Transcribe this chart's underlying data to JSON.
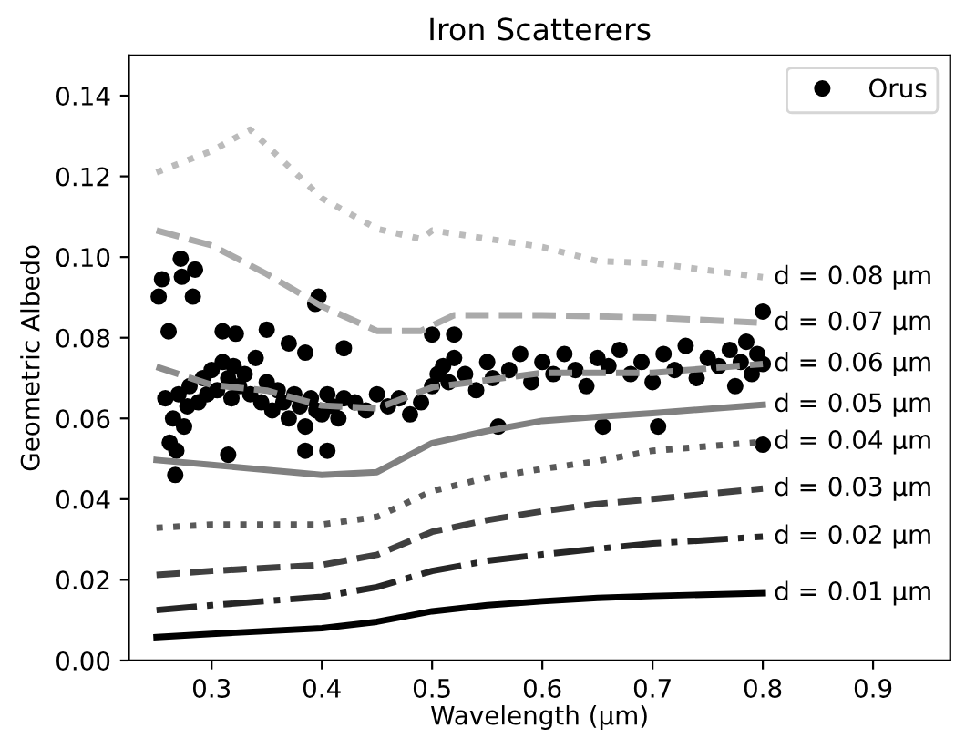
{
  "chart_data": {
    "type": "line",
    "title": "Iron Scatterers",
    "xlabel": "Wavelength (μm)",
    "ylabel": "Geometric Albedo",
    "xlim": [
      0.225,
      0.97
    ],
    "ylim": [
      0,
      0.15
    ],
    "xticks": [
      0.3,
      0.4,
      0.5,
      0.6,
      0.7,
      0.8,
      0.9
    ],
    "yticks": [
      {
        "value": 0,
        "label": "0.00"
      },
      0.02,
      0.04,
      0.06,
      0.08,
      {
        "value": 0.1,
        "label": "0.10"
      },
      0.12,
      0.14
    ],
    "grid": false,
    "legend": "top right",
    "series": [
      {
        "name": "d = 0.01 μm",
        "color": "#000000",
        "line_style": "solid",
        "x": [
          0.25,
          0.3,
          0.4,
          0.45,
          0.5,
          0.55,
          0.6,
          0.65,
          0.7,
          0.8
        ],
        "values": [
          0.0058,
          0.0066,
          0.008,
          0.0096,
          0.0122,
          0.0137,
          0.0147,
          0.0155,
          0.016,
          0.0167
        ]
      },
      {
        "name": "d = 0.02 μm",
        "color": "#262626",
        "line_style": "dashdot",
        "x": [
          0.25,
          0.3,
          0.4,
          0.45,
          0.5,
          0.55,
          0.6,
          0.65,
          0.7,
          0.8
        ],
        "values": [
          0.0125,
          0.0137,
          0.0158,
          0.0182,
          0.0222,
          0.0247,
          0.0263,
          0.0277,
          0.029,
          0.0307
        ]
      },
      {
        "name": "d = 0.03 μm",
        "color": "#404040",
        "line_style": "dashed",
        "x": [
          0.25,
          0.3,
          0.4,
          0.45,
          0.5,
          0.55,
          0.6,
          0.65,
          0.7,
          0.8
        ],
        "values": [
          0.0212,
          0.0222,
          0.0237,
          0.0262,
          0.0319,
          0.0348,
          0.037,
          0.0388,
          0.04,
          0.0426
        ]
      },
      {
        "name": "d = 0.04 μm",
        "color": "#595959",
        "line_style": "dotted",
        "x": [
          0.25,
          0.3,
          0.4,
          0.45,
          0.5,
          0.55,
          0.6,
          0.65,
          0.7,
          0.8
        ],
        "values": [
          0.0329,
          0.0337,
          0.0337,
          0.0356,
          0.042,
          0.0453,
          0.0475,
          0.0494,
          0.052,
          0.0542
        ]
      },
      {
        "name": "d = 0.05 μm",
        "color": "#808080",
        "line_style": "solid",
        "x": [
          0.25,
          0.3,
          0.4,
          0.45,
          0.5,
          0.55,
          0.6,
          0.65,
          0.7,
          0.8
        ],
        "values": [
          0.0497,
          0.0485,
          0.046,
          0.0467,
          0.0539,
          0.0569,
          0.0594,
          0.0604,
          0.0613,
          0.0634
        ]
      },
      {
        "name": "d = 0.06 μm",
        "color": "#8c8c8c",
        "line_style": "dashed",
        "x": [
          0.25,
          0.3,
          0.35,
          0.4,
          0.45,
          0.5,
          0.6,
          0.7,
          0.8
        ],
        "values": [
          0.0728,
          0.0683,
          0.0669,
          0.0632,
          0.0625,
          0.0677,
          0.0713,
          0.0713,
          0.0735
        ]
      },
      {
        "name": "d = 0.07 μm",
        "color": "#aaaaaa",
        "line_style": "dashed",
        "x": [
          0.25,
          0.3,
          0.35,
          0.4,
          0.45,
          0.49,
          0.52,
          0.6,
          0.7,
          0.8
        ],
        "values": [
          0.1066,
          0.1029,
          0.0958,
          0.0878,
          0.0817,
          0.0817,
          0.0856,
          0.0856,
          0.085,
          0.0837
        ]
      },
      {
        "name": "d = 0.08 μm",
        "color": "#bbbbbb",
        "line_style": "dotted",
        "x": [
          0.25,
          0.3,
          0.335,
          0.4,
          0.45,
          0.49,
          0.5,
          0.6,
          0.65,
          0.7,
          0.8
        ],
        "values": [
          0.121,
          0.1263,
          0.1316,
          0.1146,
          0.107,
          0.1045,
          0.1066,
          0.1025,
          0.099,
          0.0985,
          0.095
        ]
      },
      {
        "name": "Orus",
        "type": "scatter",
        "marker": "circle",
        "color": "#000000",
        "x": [
          0.252,
          0.255,
          0.272,
          0.273,
          0.285,
          0.283,
          0.261,
          0.397,
          0.394,
          0.31,
          0.322,
          0.35,
          0.37,
          0.385,
          0.42,
          0.5,
          0.52,
          0.258,
          0.262,
          0.265,
          0.268,
          0.27,
          0.275,
          0.278,
          0.28,
          0.288,
          0.292,
          0.296,
          0.3,
          0.305,
          0.31,
          0.315,
          0.318,
          0.32,
          0.325,
          0.33,
          0.335,
          0.34,
          0.345,
          0.35,
          0.355,
          0.36,
          0.365,
          0.37,
          0.375,
          0.38,
          0.385,
          0.39,
          0.395,
          0.4,
          0.405,
          0.41,
          0.415,
          0.42,
          0.43,
          0.44,
          0.45,
          0.46,
          0.47,
          0.48,
          0.49,
          0.5,
          0.505,
          0.51,
          0.515,
          0.52,
          0.53,
          0.54,
          0.55,
          0.555,
          0.56,
          0.57,
          0.58,
          0.59,
          0.6,
          0.61,
          0.62,
          0.63,
          0.64,
          0.65,
          0.655,
          0.66,
          0.67,
          0.68,
          0.69,
          0.7,
          0.705,
          0.71,
          0.72,
          0.73,
          0.74,
          0.75,
          0.76,
          0.77,
          0.775,
          0.78,
          0.785,
          0.79,
          0.795,
          0.8,
          0.8,
          0.8,
          0.267,
          0.385,
          0.405,
          0.315
        ],
        "values": [
          0.0902,
          0.0945,
          0.0996,
          0.0951,
          0.0969,
          0.0902,
          0.0816,
          0.0902,
          0.0884,
          0.0816,
          0.081,
          0.082,
          0.0786,
          0.0763,
          0.0774,
          0.0808,
          0.0808,
          0.065,
          0.054,
          0.06,
          0.052,
          0.066,
          0.058,
          0.063,
          0.068,
          0.064,
          0.07,
          0.066,
          0.072,
          0.067,
          0.074,
          0.07,
          0.065,
          0.073,
          0.068,
          0.071,
          0.066,
          0.075,
          0.064,
          0.069,
          0.062,
          0.067,
          0.064,
          0.06,
          0.066,
          0.063,
          0.058,
          0.065,
          0.062,
          0.061,
          0.066,
          0.063,
          0.06,
          0.065,
          0.064,
          0.062,
          0.066,
          0.063,
          0.065,
          0.061,
          0.064,
          0.068,
          0.071,
          0.073,
          0.069,
          0.075,
          0.071,
          0.067,
          0.074,
          0.07,
          0.058,
          0.072,
          0.076,
          0.069,
          0.074,
          0.071,
          0.076,
          0.072,
          0.068,
          0.075,
          0.058,
          0.073,
          0.077,
          0.071,
          0.074,
          0.069,
          0.058,
          0.076,
          0.072,
          0.078,
          0.07,
          0.075,
          0.073,
          0.077,
          0.068,
          0.074,
          0.079,
          0.071,
          0.076,
          0.0735,
          0.0865,
          0.0535,
          0.046,
          0.052,
          0.052,
          0.051
        ]
      }
    ]
  }
}
